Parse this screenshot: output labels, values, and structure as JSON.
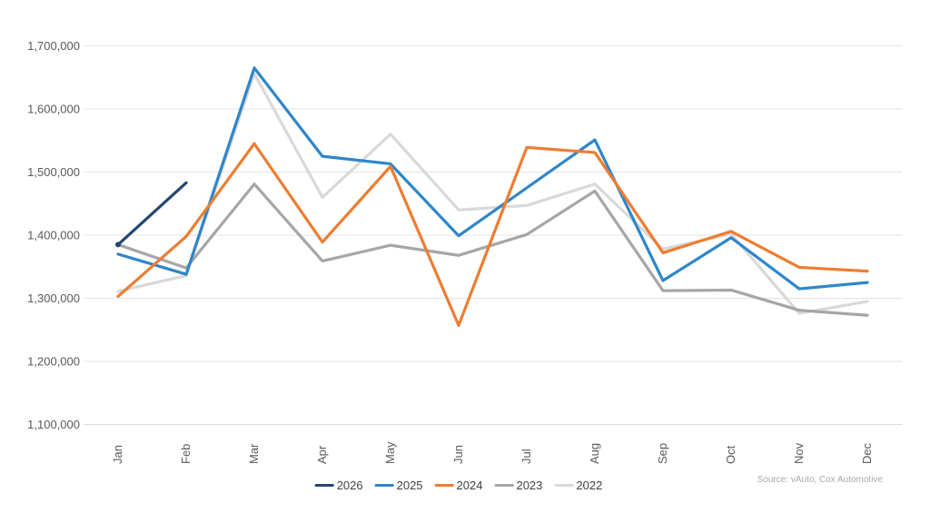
{
  "source_note": "Source: vAuto, Cox Automotive",
  "chart_data": {
    "type": "line",
    "title": "",
    "x": [
      "Jan",
      "Feb",
      "Mar",
      "Apr",
      "May",
      "Jun",
      "Jul",
      "Aug",
      "Sep",
      "Oct",
      "Nov",
      "Dec"
    ],
    "y_axis": {
      "min": 1100000,
      "max": 1700000,
      "step": 100000,
      "tick_labels": [
        "1,100,000",
        "1,200,000",
        "1,300,000",
        "1,400,000",
        "1,500,000",
        "1,600,000",
        "1,700,000"
      ]
    },
    "grid": true,
    "legend_position": "bottom",
    "series": [
      {
        "name": "2026",
        "color": "#24476F",
        "values": [
          1385000,
          1483000,
          null,
          null,
          null,
          null,
          null,
          null,
          null,
          null,
          null,
          null
        ]
      },
      {
        "name": "2025",
        "color": "#2E86C8",
        "values": [
          1370000,
          1338000,
          1665000,
          1525000,
          1513000,
          1399000,
          1475000,
          1551000,
          1328000,
          1396000,
          1315000,
          1325000
        ]
      },
      {
        "name": "2024",
        "color": "#ED7D31",
        "values": [
          1303000,
          1398000,
          1545000,
          1389000,
          1509000,
          1257000,
          1539000,
          1531000,
          1372000,
          1406000,
          1349000,
          1343000
        ]
      },
      {
        "name": "2023",
        "color": "#A6A6A6",
        "values": [
          1385000,
          1348000,
          1481000,
          1359000,
          1384000,
          1368000,
          1401000,
          1470000,
          1312000,
          1313000,
          1281000,
          1273000
        ]
      },
      {
        "name": "2022",
        "color": "#D9D9D9",
        "values": [
          1311000,
          1336000,
          1656000,
          1460000,
          1560000,
          1440000,
          1447000,
          1481000,
          1378000,
          1402000,
          1276000,
          1295000
        ]
      }
    ]
  }
}
